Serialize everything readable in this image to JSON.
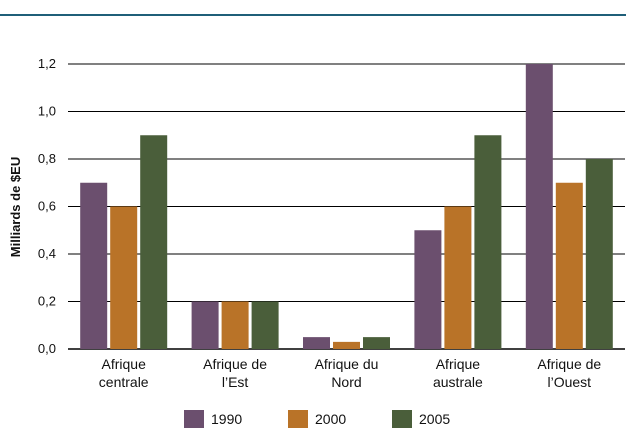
{
  "chart_data": {
    "type": "bar",
    "title": "",
    "xlabel": "",
    "ylabel": "Milliards de $EU",
    "ylim": [
      0,
      1.2
    ],
    "yticks": [
      "0,0",
      "0,2",
      "0,4",
      "0,6",
      "0,8",
      "1,0",
      "1,2"
    ],
    "ytick_values": [
      0,
      0.2,
      0.4,
      0.6,
      0.8,
      1.0,
      1.2
    ],
    "categories": [
      [
        "Afrique",
        "centrale"
      ],
      [
        "Afrique de",
        "l’Est"
      ],
      [
        "Afrique du",
        "Nord"
      ],
      [
        "Afrique",
        "australe"
      ],
      [
        "Afrique de",
        "l’Ouest"
      ]
    ],
    "series": [
      {
        "name": "1990",
        "color": "#6b4f6e",
        "values": [
          0.7,
          0.2,
          0.05,
          0.5,
          1.2
        ]
      },
      {
        "name": "2000",
        "color": "#b97328",
        "values": [
          0.6,
          0.2,
          0.03,
          0.6,
          0.7
        ]
      },
      {
        "name": "2005",
        "color": "#4a5e3a",
        "values": [
          0.9,
          0.2,
          0.05,
          0.9,
          0.8
        ]
      }
    ],
    "grid": true,
    "legend_position": "bottom"
  }
}
